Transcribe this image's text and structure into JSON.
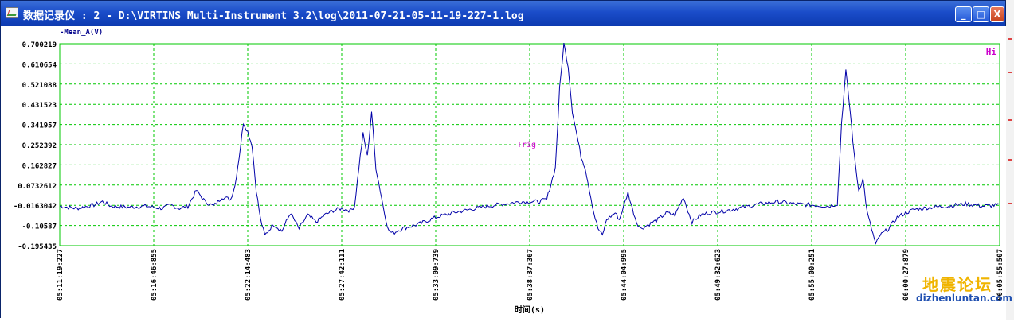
{
  "window": {
    "title": "数据记录仪 : 2 - D:\\VIRTINS Multi-Instrument 3.2\\log\\2011-07-21-05-11-19-227-1.log",
    "buttons": {
      "minimize": "_",
      "maximize": "□",
      "close": "X"
    }
  },
  "chart_data": {
    "type": "line",
    "series": [
      {
        "name": "-Mean_A(V)",
        "color": "#0000a8"
      }
    ],
    "ylabel": "-Mean_A(V)",
    "xlabel": "时间(s)",
    "ylim": [
      -0.195435,
      0.700219
    ],
    "y_ticks": [
      "0.700219",
      "0.610654",
      "0.521088",
      "0.431523",
      "0.341957",
      "0.252392",
      "0.162827",
      "0.0732612",
      "-0.0163042",
      "-0.10587",
      "-0.195435"
    ],
    "x_ticks": [
      "05:11:19:227",
      "05:16:46:855",
      "05:22:14:483",
      "05:27:42:111",
      "05:33:09:739",
      "05:38:37:367",
      "05:44:04:995",
      "05:49:32:623",
      "05:55:00:251",
      "06:00:27:879",
      "06:05:55:507"
    ],
    "grid": true,
    "grid_color": "#00c800",
    "trigger_label": "Trig",
    "trigger_color": "#cc00cc",
    "corner_marker": "Hi",
    "points": [
      [
        0,
        -0.02
      ],
      [
        0.02,
        -0.03
      ],
      [
        0.04,
        -0.015
      ],
      [
        0.05,
        0.0
      ],
      [
        0.06,
        -0.02
      ],
      [
        0.08,
        -0.025
      ],
      [
        0.1,
        -0.02
      ],
      [
        0.12,
        -0.03
      ],
      [
        0.13,
        -0.015
      ],
      [
        0.14,
        -0.03
      ],
      [
        0.15,
        -0.02
      ],
      [
        0.16,
        0.05
      ],
      [
        0.17,
        0.0
      ],
      [
        0.18,
        -0.02
      ],
      [
        0.19,
        0.02
      ],
      [
        0.2,
        0.01
      ],
      [
        0.205,
        0.07
      ],
      [
        0.21,
        0.2
      ],
      [
        0.215,
        0.35
      ],
      [
        0.22,
        0.31
      ],
      [
        0.225,
        0.25
      ],
      [
        0.23,
        0.05
      ],
      [
        0.235,
        -0.08
      ],
      [
        0.24,
        -0.15
      ],
      [
        0.25,
        -0.1
      ],
      [
        0.26,
        -0.13
      ],
      [
        0.27,
        -0.05
      ],
      [
        0.28,
        -0.12
      ],
      [
        0.29,
        -0.06
      ],
      [
        0.3,
        -0.09
      ],
      [
        0.31,
        -0.06
      ],
      [
        0.32,
        -0.04
      ],
      [
        0.33,
        -0.03
      ],
      [
        0.34,
        -0.04
      ],
      [
        0.345,
        -0.02
      ],
      [
        0.35,
        0.15
      ],
      [
        0.355,
        0.3
      ],
      [
        0.36,
        0.2
      ],
      [
        0.365,
        0.4
      ],
      [
        0.37,
        0.15
      ],
      [
        0.375,
        0.05
      ],
      [
        0.38,
        -0.05
      ],
      [
        0.385,
        -0.13
      ],
      [
        0.39,
        -0.14
      ],
      [
        0.4,
        -0.12
      ],
      [
        0.42,
        -0.1
      ],
      [
        0.44,
        -0.07
      ],
      [
        0.46,
        -0.05
      ],
      [
        0.48,
        -0.035
      ],
      [
        0.5,
        -0.02
      ],
      [
        0.52,
        -0.01
      ],
      [
        0.54,
        0.0
      ],
      [
        0.56,
        0.0
      ],
      [
        0.57,
        0.01
      ],
      [
        0.58,
        0.15
      ],
      [
        0.585,
        0.5
      ],
      [
        0.59,
        0.7
      ],
      [
        0.595,
        0.6
      ],
      [
        0.6,
        0.4
      ],
      [
        0.605,
        0.3
      ],
      [
        0.61,
        0.2
      ],
      [
        0.615,
        0.15
      ],
      [
        0.62,
        0.05
      ],
      [
        0.625,
        -0.05
      ],
      [
        0.63,
        -0.12
      ],
      [
        0.635,
        -0.15
      ],
      [
        0.64,
        -0.08
      ],
      [
        0.65,
        -0.05
      ],
      [
        0.655,
        -0.08
      ],
      [
        0.66,
        -0.02
      ],
      [
        0.665,
        0.04
      ],
      [
        0.67,
        -0.03
      ],
      [
        0.675,
        -0.09
      ],
      [
        0.68,
        -0.12
      ],
      [
        0.69,
        -0.1
      ],
      [
        0.7,
        -0.08
      ],
      [
        0.71,
        -0.05
      ],
      [
        0.72,
        -0.06
      ],
      [
        0.73,
        0.02
      ],
      [
        0.735,
        -0.04
      ],
      [
        0.74,
        -0.09
      ],
      [
        0.75,
        -0.06
      ],
      [
        0.76,
        -0.05
      ],
      [
        0.78,
        -0.04
      ],
      [
        0.8,
        -0.025
      ],
      [
        0.82,
        -0.01
      ],
      [
        0.84,
        0.0
      ],
      [
        0.86,
        -0.01
      ],
      [
        0.88,
        -0.015
      ],
      [
        0.9,
        -0.02
      ],
      [
        0.91,
        -0.01
      ],
      [
        0.915,
        0.35
      ],
      [
        0.92,
        0.58
      ],
      [
        0.925,
        0.4
      ],
      [
        0.93,
        0.2
      ],
      [
        0.935,
        0.05
      ],
      [
        0.94,
        0.1
      ],
      [
        0.945,
        -0.05
      ],
      [
        0.95,
        -0.12
      ],
      [
        0.955,
        -0.19
      ],
      [
        0.96,
        -0.15
      ],
      [
        0.97,
        -0.12
      ],
      [
        0.98,
        -0.07
      ],
      [
        0.99,
        -0.05
      ],
      [
        1.0,
        -0.035
      ],
      [
        1.02,
        -0.025
      ],
      [
        1.04,
        -0.02
      ],
      [
        1.06,
        -0.01
      ],
      [
        1.08,
        -0.02
      ],
      [
        1.1,
        -0.015
      ]
    ]
  },
  "watermark": {
    "main": "地震论坛",
    "sub": "dizhenluntan.com"
  }
}
